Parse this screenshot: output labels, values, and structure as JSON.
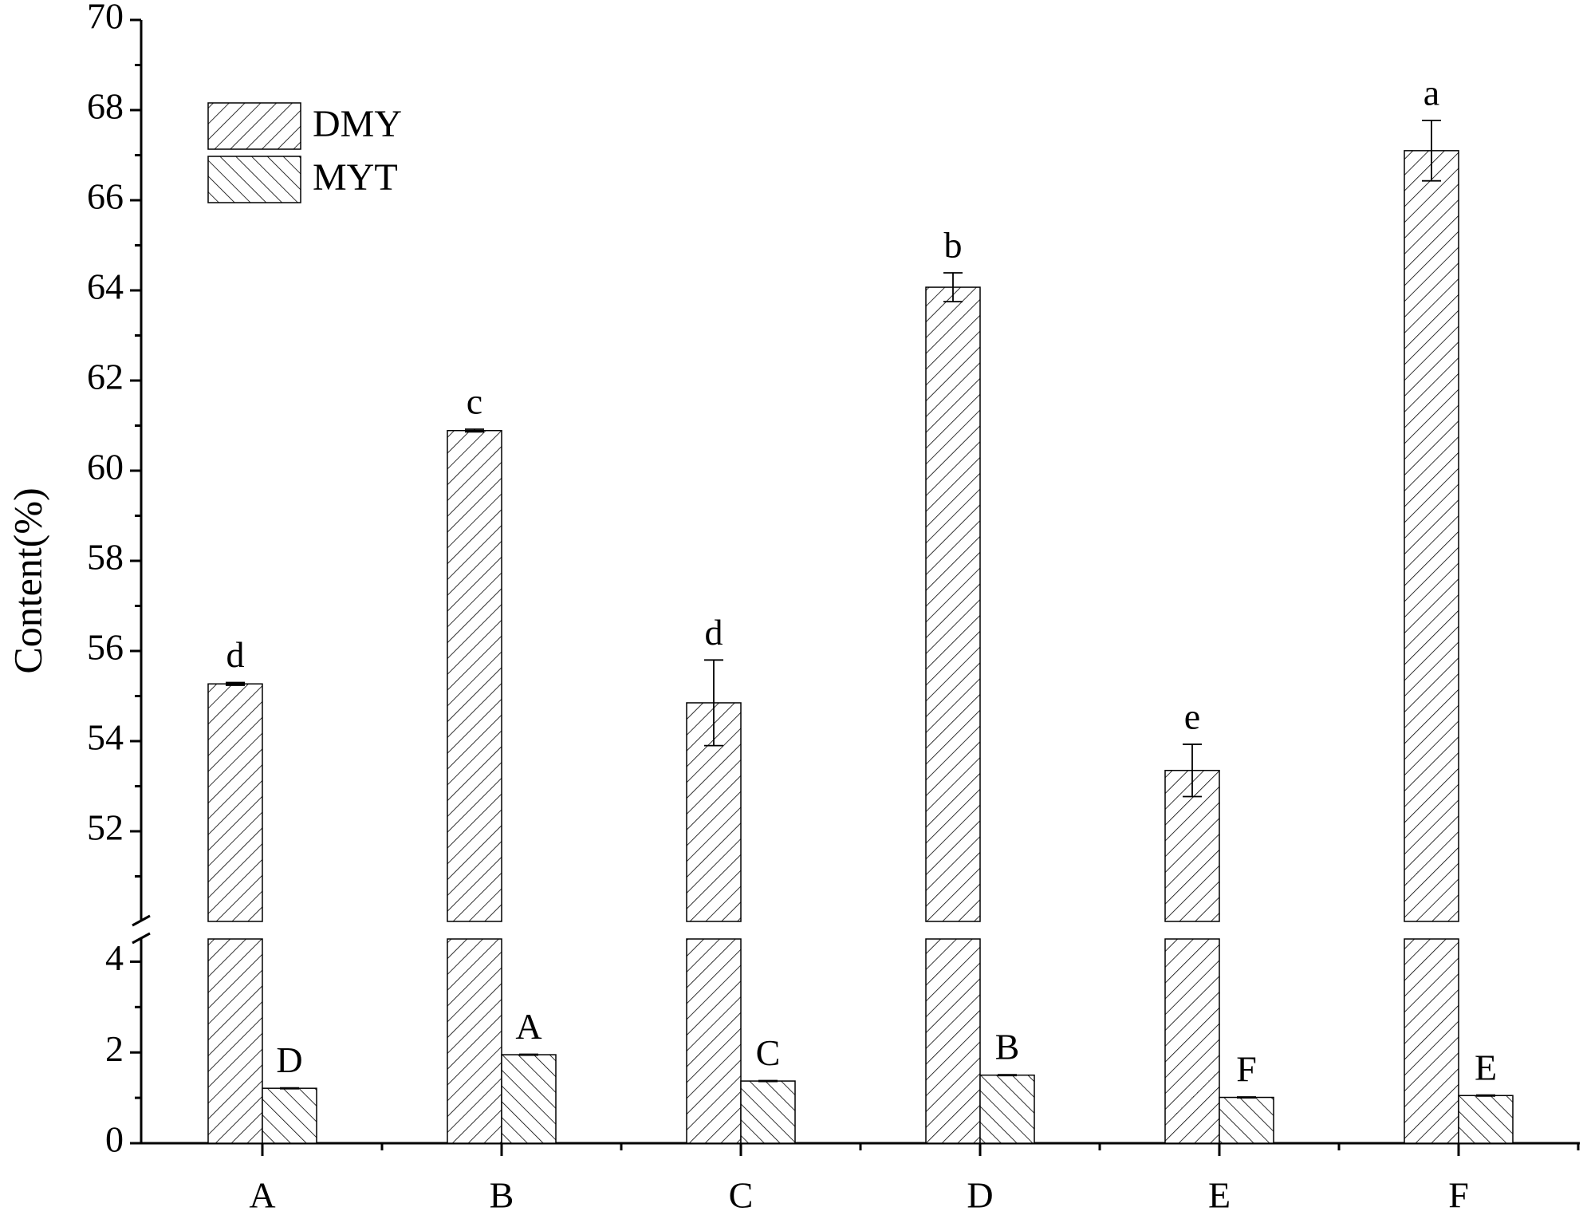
{
  "chart_data": {
    "type": "bar",
    "y_label": "Content(%)",
    "categories": [
      "A",
      "B",
      "C",
      "D",
      "E",
      "F"
    ],
    "series": [
      {
        "name": "DMY",
        "color": "#000000",
        "hatch": "/",
        "values": [
          55.27,
          60.89,
          54.85,
          64.07,
          53.35,
          67.1
        ],
        "errors": [
          0.03,
          0.03,
          0.95,
          0.32,
          0.58,
          0.67
        ],
        "labels": [
          "d",
          "c",
          "d",
          "b",
          "e",
          "a"
        ]
      },
      {
        "name": "MYT",
        "color": "#000000",
        "hatch": "\\",
        "values": [
          1.21,
          1.95,
          1.37,
          1.5,
          1.01,
          1.05
        ],
        "errors": [
          0.01,
          0.01,
          0.01,
          0.01,
          0.01,
          0.01
        ],
        "labels": [
          "D",
          "A",
          "C",
          "B",
          "F",
          "E"
        ]
      }
    ],
    "y_segments": [
      {
        "ylim": [
          0,
          4.5
        ],
        "yticks": [
          0,
          2,
          4
        ],
        "minor_ticks": [
          1,
          3
        ]
      },
      {
        "ylim": [
          50,
          70
        ],
        "yticks": [
          52,
          54,
          56,
          58,
          60,
          62,
          64,
          66,
          68,
          70
        ],
        "minor_ticks": [
          51,
          53,
          55,
          57,
          59,
          61,
          63,
          65,
          67,
          69
        ]
      }
    ]
  }
}
